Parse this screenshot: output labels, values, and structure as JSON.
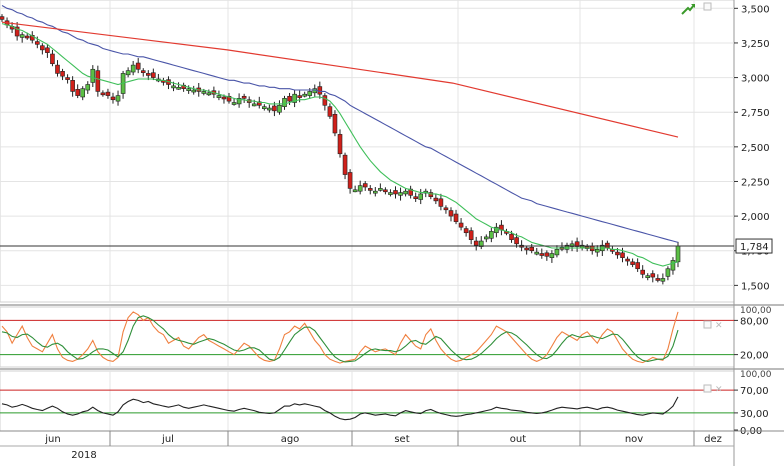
{
  "colors": {
    "up": "#5bbf45",
    "down": "#d0201a",
    "sma_short": "#3fbf5a",
    "sma_mid": "#4a55a8",
    "sma_long": "#e23a30",
    "osc_fast": "#f08040",
    "osc_slow": "#2f8f3a",
    "rsi": "#222222",
    "overbought": "#cc2222",
    "oversold": "#2a9a2a",
    "grid": "#e4e4e4",
    "current_price_line": "#333333"
  },
  "toolbar": {
    "icon": "trend-arrow-icon"
  },
  "chart_data": [
    {
      "type": "candlestick",
      "x_unit": "trading day (approx. 2018-05-21 to 2018-11-23)",
      "ylim": [
        1380,
        3560
      ],
      "y_ticks": [
        1500,
        1750,
        2000,
        2250,
        2500,
        2750,
        3000,
        3250,
        3500
      ],
      "y_tick_labels": [
        "1,500",
        "1,750",
        "2,000",
        "2,250",
        "2,500",
        "2,750",
        "3,000",
        "3,250",
        "3,500"
      ],
      "current_price": 1784,
      "current_price_label": "1,784",
      "close": [
        3420,
        3380,
        3350,
        3300,
        3310,
        3290,
        3270,
        3240,
        3200,
        3180,
        3100,
        3030,
        3010,
        2990,
        2900,
        2870,
        2920,
        2950,
        3060,
        2900,
        2880,
        2870,
        2840,
        2870,
        3030,
        3050,
        3090,
        3060,
        3040,
        3020,
        3000,
        2990,
        2970,
        2950,
        2940,
        2930,
        2920,
        2920,
        2910,
        2900,
        2900,
        2890,
        2880,
        2870,
        2850,
        2830,
        2820,
        2850,
        2850,
        2820,
        2810,
        2800,
        2790,
        2780,
        2760,
        2800,
        2850,
        2830,
        2880,
        2860,
        2880,
        2900,
        2920,
        2880,
        2800,
        2720,
        2600,
        2450,
        2300,
        2200,
        2190,
        2220,
        2210,
        2190,
        2180,
        2200,
        2180,
        2170,
        2160,
        2170,
        2180,
        2150,
        2130,
        2160,
        2180,
        2140,
        2110,
        2070,
        2050,
        2000,
        1960,
        1920,
        1880,
        1830,
        1790,
        1820,
        1850,
        1890,
        1920,
        1900,
        1880,
        1830,
        1800,
        1780,
        1760,
        1750,
        1740,
        1720,
        1710,
        1730,
        1760,
        1770,
        1790,
        1800,
        1780,
        1790,
        1770,
        1750,
        1760,
        1790,
        1770,
        1750,
        1720,
        1700,
        1680,
        1650,
        1620,
        1580,
        1570,
        1560,
        1540,
        1550,
        1620,
        1680,
        1784
      ],
      "sma_short": [
        3390,
        3380,
        3370,
        3350,
        3340,
        3320,
        3300,
        3280,
        3260,
        3240,
        3210,
        3180,
        3150,
        3120,
        3090,
        3060,
        3030,
        3010,
        3000,
        2990,
        2980,
        2970,
        2960,
        2950,
        2960,
        2970,
        2980,
        2990,
        2990,
        2990,
        2990,
        2980,
        2980,
        2970,
        2960,
        2950,
        2940,
        2930,
        2920,
        2910,
        2910,
        2900,
        2890,
        2880,
        2870,
        2860,
        2850,
        2840,
        2840,
        2830,
        2830,
        2820,
        2820,
        2810,
        2810,
        2810,
        2810,
        2820,
        2830,
        2840,
        2840,
        2850,
        2860,
        2860,
        2850,
        2830,
        2790,
        2740,
        2680,
        2620,
        2560,
        2500,
        2450,
        2400,
        2360,
        2320,
        2290,
        2260,
        2240,
        2220,
        2200,
        2190,
        2180,
        2170,
        2170,
        2160,
        2160,
        2150,
        2140,
        2120,
        2100,
        2070,
        2040,
        2010,
        1980,
        1960,
        1940,
        1920,
        1910,
        1900,
        1890,
        1880,
        1860,
        1850,
        1830,
        1810,
        1800,
        1790,
        1780,
        1770,
        1770,
        1770,
        1770,
        1770,
        1770,
        1770,
        1770,
        1770,
        1770,
        1770,
        1770,
        1760,
        1760,
        1750,
        1740,
        1730,
        1710,
        1700,
        1680,
        1660,
        1650,
        1640,
        1650,
        1660,
        1670
      ],
      "sma_mid": [
        3520,
        3500,
        3490,
        3470,
        3460,
        3440,
        3430,
        3410,
        3400,
        3380,
        3370,
        3350,
        3330,
        3320,
        3300,
        3280,
        3270,
        3250,
        3240,
        3230,
        3210,
        3200,
        3190,
        3180,
        3170,
        3170,
        3160,
        3150,
        3150,
        3140,
        3130,
        3120,
        3110,
        3100,
        3090,
        3080,
        3070,
        3060,
        3050,
        3040,
        3030,
        3020,
        3010,
        3000,
        2990,
        2980,
        2980,
        2970,
        2960,
        2960,
        2950,
        2940,
        2940,
        2930,
        2930,
        2920,
        2920,
        2920,
        2910,
        2910,
        2910,
        2910,
        2910,
        2900,
        2900,
        2880,
        2870,
        2850,
        2830,
        2800,
        2780,
        2760,
        2740,
        2720,
        2700,
        2680,
        2660,
        2640,
        2620,
        2600,
        2580,
        2560,
        2540,
        2520,
        2500,
        2490,
        2470,
        2450,
        2430,
        2410,
        2390,
        2370,
        2350,
        2330,
        2310,
        2290,
        2270,
        2250,
        2230,
        2210,
        2190,
        2170,
        2150,
        2130,
        2120,
        2110,
        2090,
        2080,
        2070,
        2060,
        2050,
        2040,
        2030,
        2020,
        2010,
        2000,
        1990,
        1980,
        1970,
        1960,
        1950,
        1940,
        1930,
        1920,
        1910,
        1900,
        1890,
        1880,
        1870,
        1860,
        1850,
        1840,
        1830,
        1820,
        1810
      ],
      "sma_long": [
        3400,
        3200,
        2960,
        2570
      ]
    },
    {
      "type": "line",
      "ylim": [
        0,
        100
      ],
      "y_ticks": [
        80,
        20
      ],
      "y_tick_labels": [
        "80,00",
        "20,00"
      ],
      "top_tick_label": "100,00",
      "levels": [
        80,
        20
      ],
      "fast": [
        70,
        60,
        40,
        55,
        70,
        50,
        35,
        30,
        25,
        40,
        55,
        30,
        15,
        10,
        8,
        12,
        20,
        30,
        45,
        25,
        15,
        10,
        8,
        15,
        60,
        85,
        95,
        90,
        80,
        85,
        70,
        60,
        55,
        40,
        45,
        50,
        35,
        30,
        40,
        50,
        55,
        45,
        40,
        35,
        30,
        25,
        20,
        30,
        40,
        35,
        25,
        15,
        10,
        8,
        10,
        30,
        55,
        60,
        70,
        65,
        75,
        60,
        45,
        35,
        20,
        12,
        8,
        5,
        8,
        10,
        12,
        25,
        35,
        30,
        25,
        28,
        30,
        25,
        20,
        40,
        55,
        45,
        35,
        30,
        55,
        65,
        45,
        30,
        20,
        12,
        8,
        10,
        15,
        20,
        25,
        35,
        45,
        55,
        70,
        65,
        60,
        50,
        40,
        30,
        20,
        12,
        8,
        12,
        20,
        35,
        50,
        60,
        55,
        50,
        45,
        55,
        60,
        50,
        40,
        55,
        65,
        60,
        45,
        30,
        20,
        12,
        8,
        6,
        10,
        15,
        12,
        10,
        30,
        65,
        95
      ],
      "slow": [
        60,
        58,
        52,
        50,
        55,
        56,
        50,
        42,
        35,
        33,
        38,
        40,
        35,
        25,
        18,
        12,
        13,
        18,
        25,
        30,
        30,
        28,
        22,
        16,
        25,
        45,
        70,
        85,
        88,
        85,
        80,
        72,
        65,
        55,
        48,
        45,
        43,
        40,
        38,
        42,
        45,
        48,
        46,
        42,
        38,
        33,
        28,
        26,
        28,
        32,
        32,
        28,
        20,
        12,
        10,
        15,
        28,
        42,
        55,
        62,
        68,
        68,
        62,
        50,
        38,
        26,
        16,
        10,
        7,
        8,
        9,
        15,
        22,
        28,
        30,
        28,
        27,
        27,
        25,
        28,
        35,
        43,
        45,
        40,
        38,
        45,
        52,
        48,
        38,
        28,
        20,
        13,
        11,
        12,
        16,
        22,
        30,
        38,
        48,
        55,
        60,
        58,
        53,
        45,
        37,
        28,
        20,
        14,
        13,
        18,
        28,
        40,
        50,
        55,
        52,
        50,
        52,
        53,
        50,
        48,
        52,
        56,
        55,
        47,
        36,
        25,
        16,
        10,
        8,
        10,
        12,
        12,
        17,
        35,
        63
      ]
    },
    {
      "type": "line",
      "ylim": [
        0,
        100
      ],
      "y_ticks": [
        70,
        30,
        0
      ],
      "y_tick_labels": [
        "70,00",
        "30,00",
        "0,00"
      ],
      "top_tick_label": "100,00",
      "levels": [
        70,
        30
      ],
      "values": [
        46,
        44,
        40,
        42,
        45,
        42,
        38,
        36,
        34,
        38,
        42,
        38,
        32,
        28,
        26,
        28,
        32,
        34,
        40,
        34,
        30,
        28,
        26,
        32,
        44,
        50,
        54,
        52,
        48,
        50,
        46,
        44,
        42,
        40,
        42,
        44,
        40,
        38,
        40,
        42,
        44,
        42,
        40,
        38,
        36,
        34,
        33,
        36,
        38,
        36,
        34,
        31,
        30,
        29,
        30,
        36,
        42,
        42,
        46,
        44,
        46,
        44,
        42,
        40,
        34,
        30,
        24,
        20,
        18,
        19,
        22,
        28,
        30,
        28,
        26,
        27,
        28,
        26,
        25,
        30,
        34,
        32,
        30,
        29,
        34,
        36,
        32,
        29,
        27,
        25,
        24,
        25,
        27,
        28,
        30,
        32,
        34,
        36,
        40,
        38,
        37,
        35,
        34,
        33,
        31,
        30,
        29,
        30,
        32,
        35,
        38,
        40,
        39,
        38,
        37,
        39,
        40,
        38,
        36,
        39,
        40,
        38,
        35,
        33,
        31,
        29,
        27,
        26,
        28,
        30,
        29,
        28,
        34,
        42,
        58
      ]
    }
  ],
  "x_axis": {
    "months": [
      "jun",
      "jul",
      "ago",
      "set",
      "out",
      "nov",
      "dez"
    ],
    "year": "2018"
  }
}
